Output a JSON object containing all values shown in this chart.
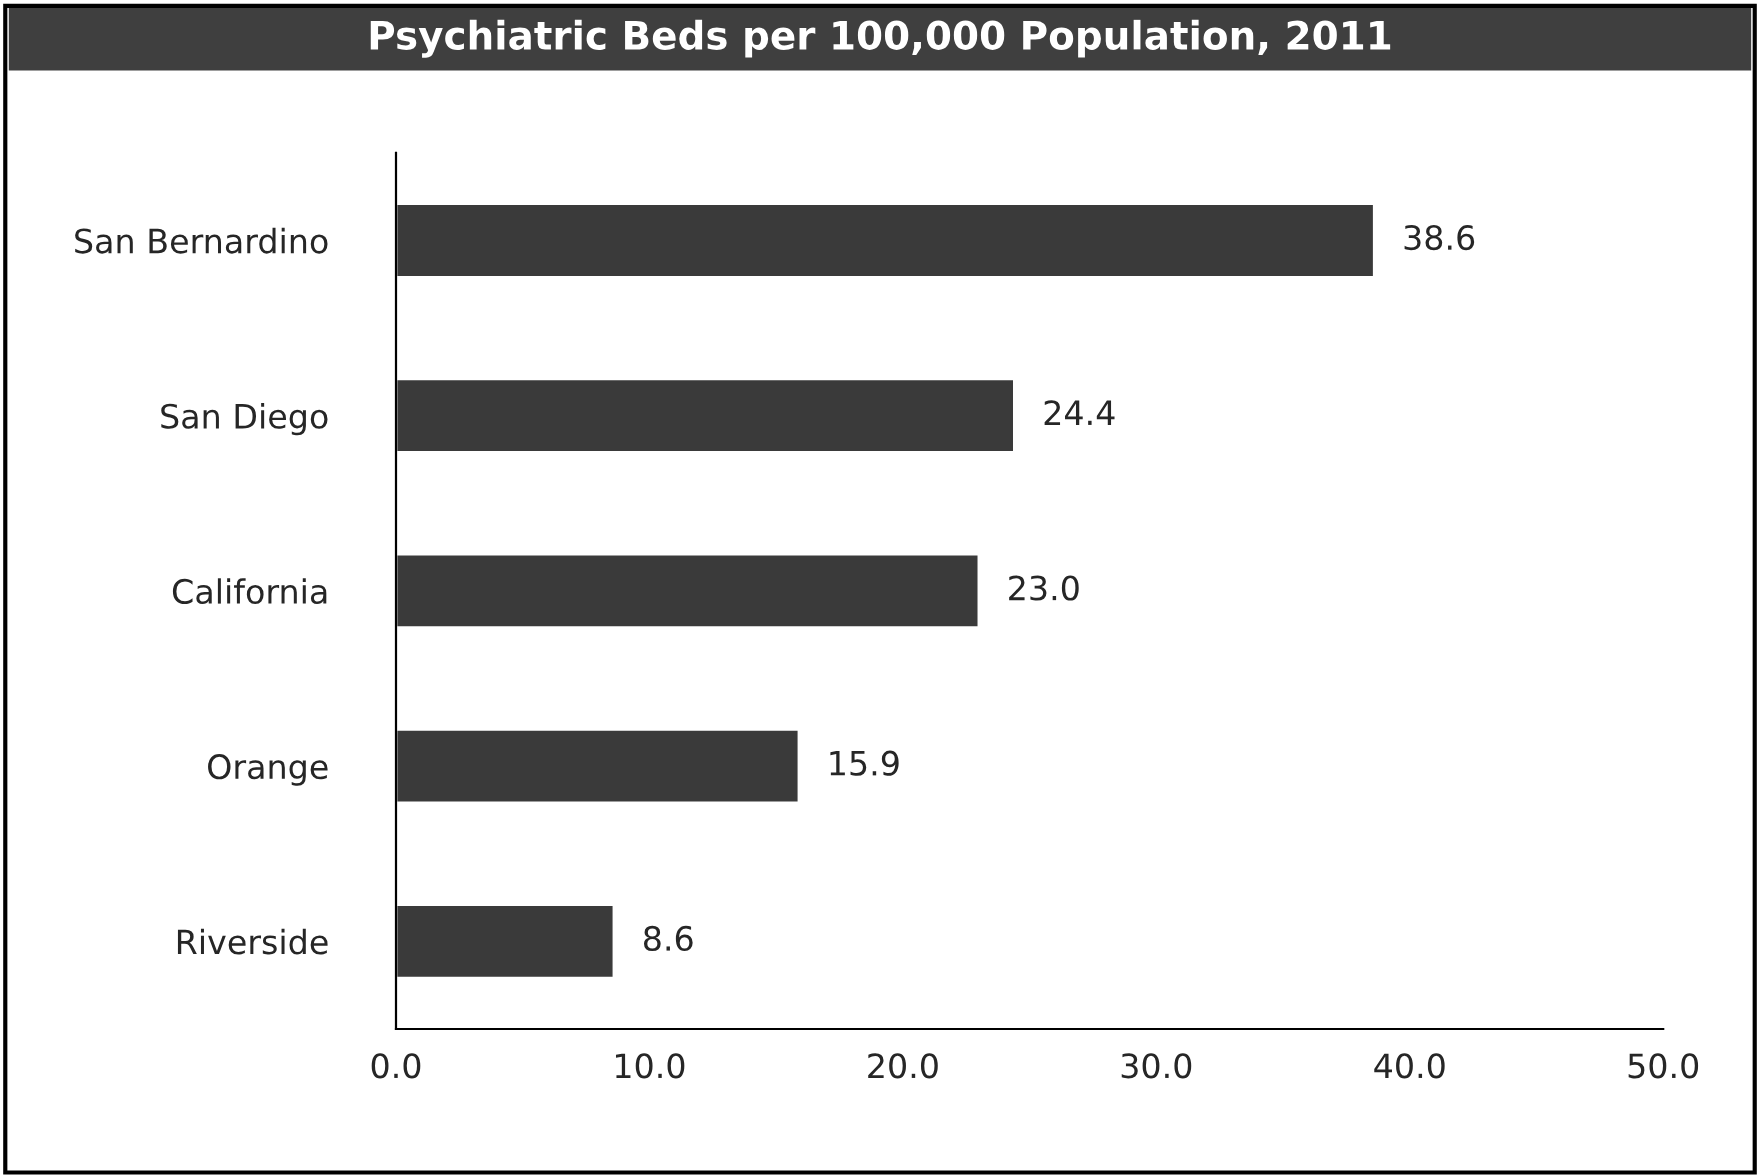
{
  "chart_data": {
    "type": "bar",
    "orientation": "horizontal",
    "title": "Psychiatric Beds per 100,000 Population, 2011",
    "categories": [
      "San Bernardino",
      "San Diego",
      "California",
      "Orange",
      "Riverside"
    ],
    "values": [
      38.6,
      24.4,
      23.0,
      15.9,
      8.6
    ],
    "value_labels": [
      "38.6",
      "24.4",
      "23.0",
      "15.9",
      "8.6"
    ],
    "color": "#3a3a3a",
    "xlim": [
      0,
      50
    ],
    "xticks": [
      {
        "value": 0,
        "label": "0.0"
      },
      {
        "value": 10,
        "label": "10.0"
      },
      {
        "value": 20,
        "label": "20.0"
      },
      {
        "value": 30,
        "label": "30.0"
      },
      {
        "value": 40,
        "label": "40.0"
      },
      {
        "value": 50,
        "label": "50.0"
      }
    ],
    "grid": false,
    "legend": false
  }
}
